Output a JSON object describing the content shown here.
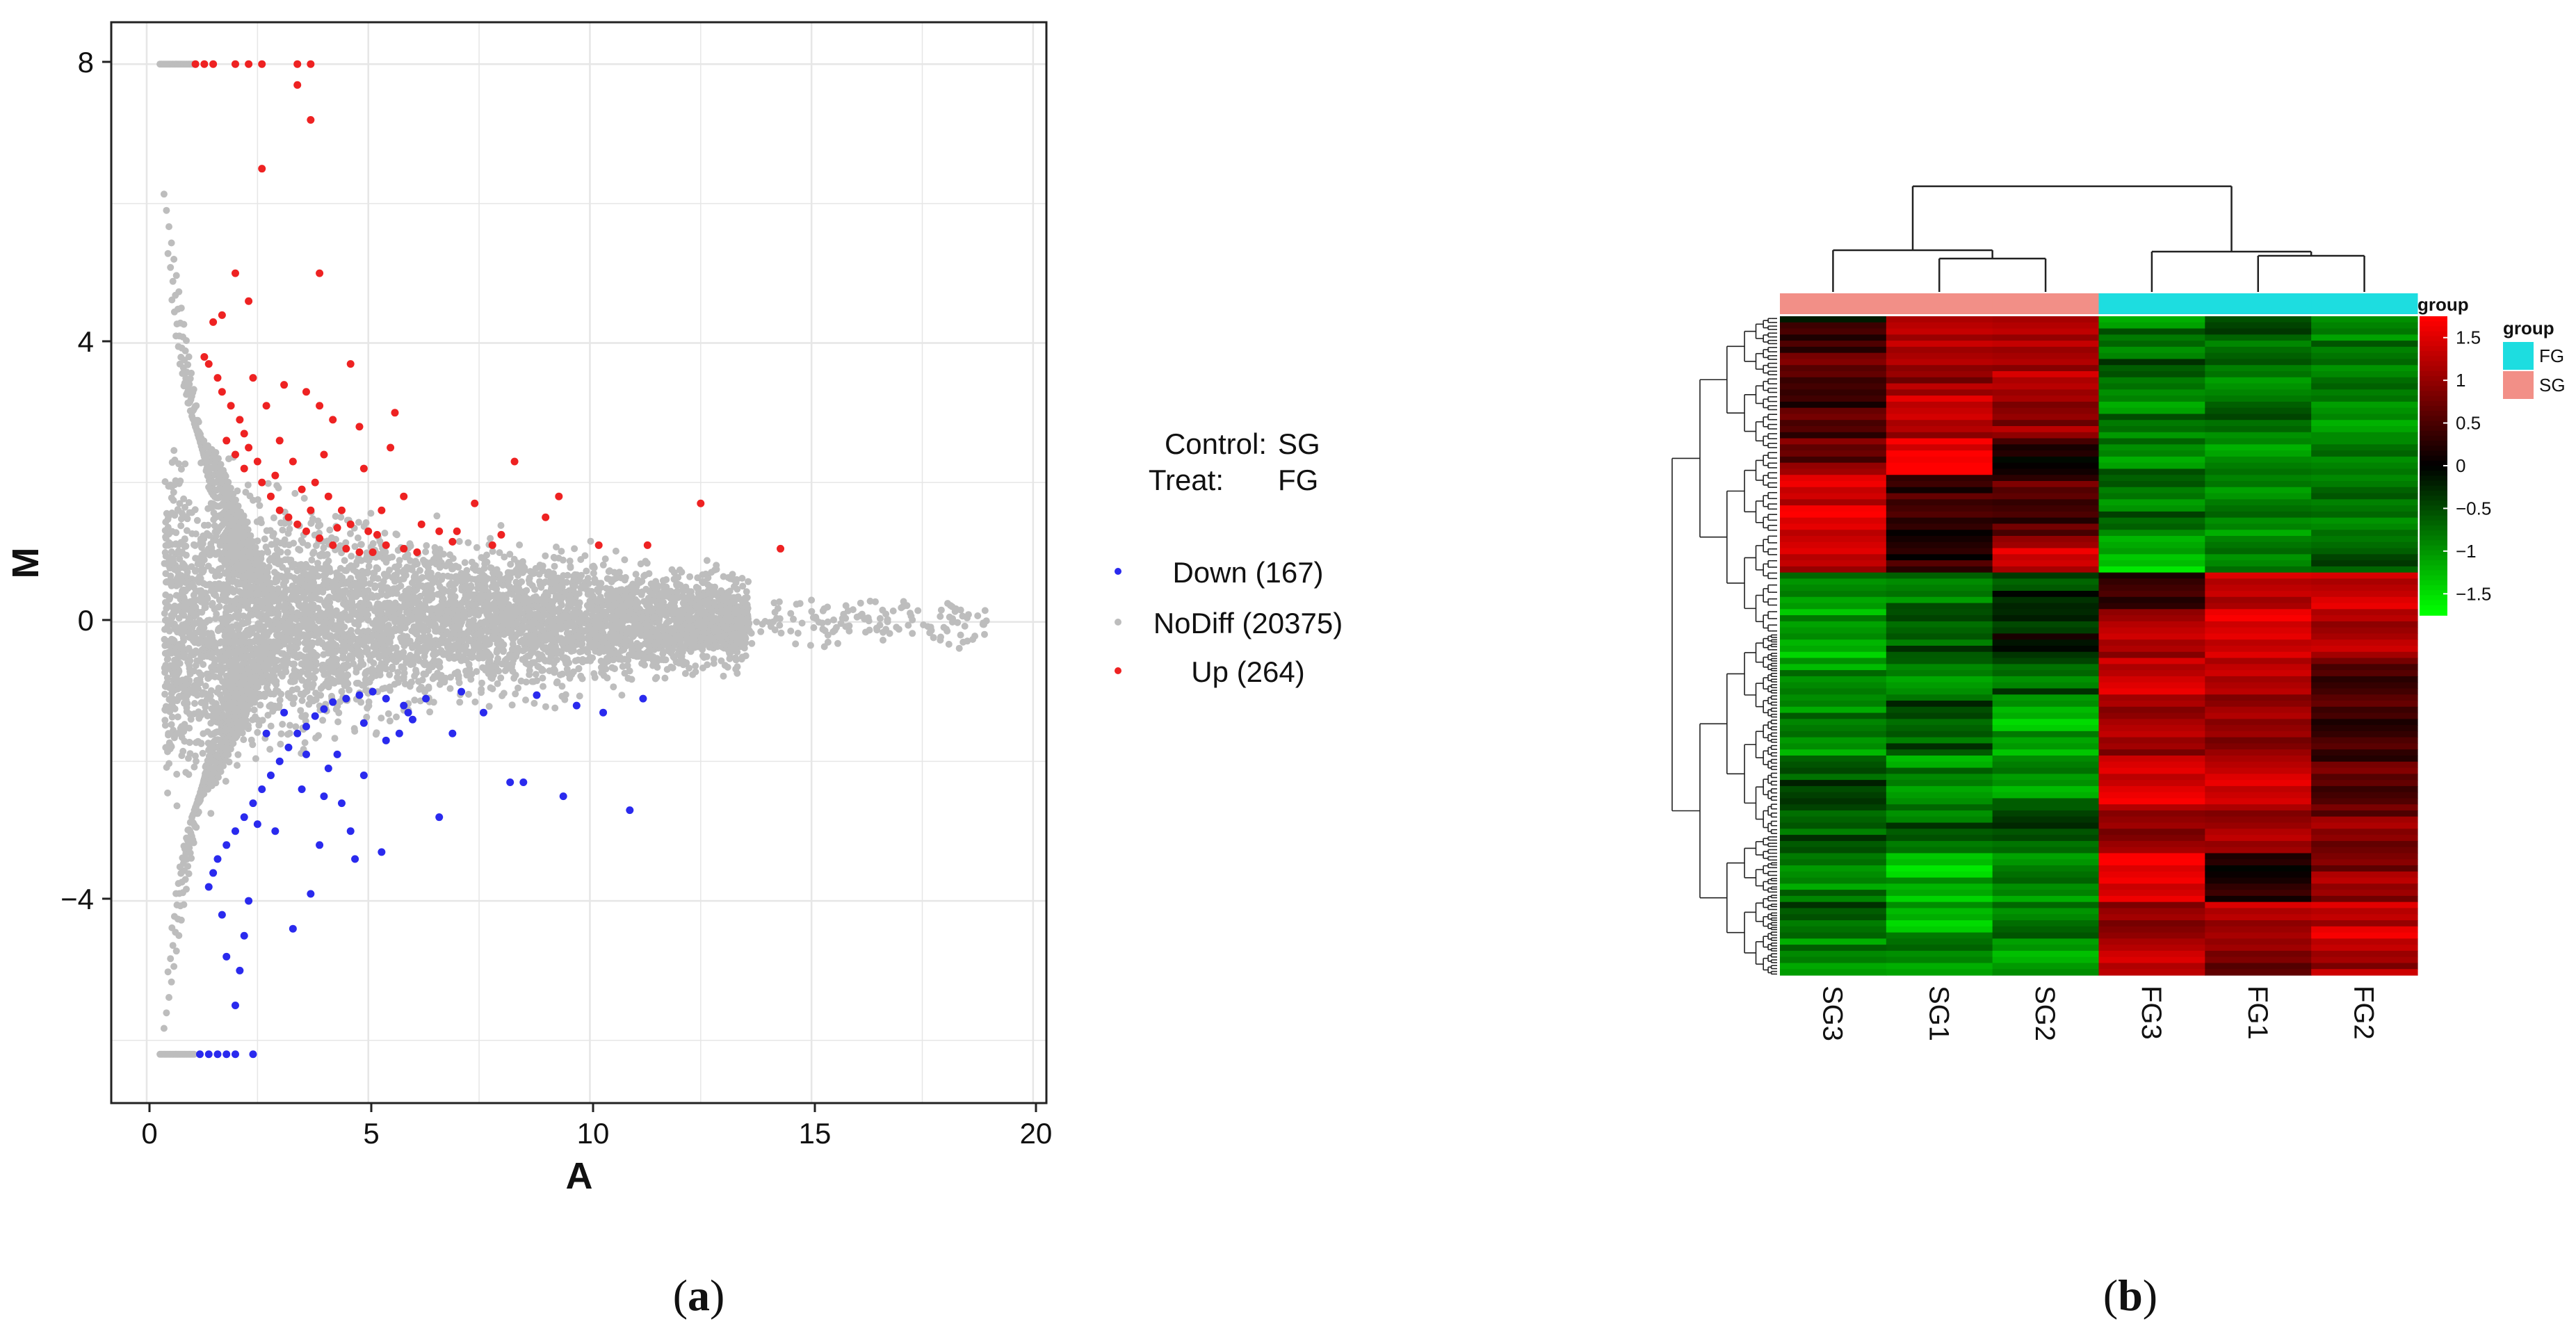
{
  "panels": {
    "a": "a",
    "b": "b"
  },
  "colors": {
    "up": "#ee2222",
    "down": "#2a2aee",
    "nodiff": "#bdbdbd",
    "grid": "#e6e6e6",
    "FG": "#1ddde0",
    "SG": "#f28f87"
  },
  "chart_data": [
    {
      "type": "scatter",
      "title": "",
      "xlabel": "A",
      "ylabel": "M",
      "xlim": [
        -0.8,
        20.3
      ],
      "ylim": [
        -6.9,
        8.6
      ],
      "xticks": [
        0,
        5,
        10,
        15,
        20
      ],
      "yticks": [
        -4,
        0,
        4,
        8
      ],
      "xtick_labels": [
        "0",
        "5",
        "10",
        "15",
        "20"
      ],
      "ytick_labels": [
        "−4",
        "0",
        "4",
        "8"
      ],
      "grid": true,
      "annotation": {
        "control_key": "Control:",
        "control_value": "SG",
        "treat_key": "Treat:",
        "treat_value": "FG"
      },
      "legend": [
        {
          "key": "down",
          "label": "Down (167)",
          "count": 167
        },
        {
          "key": "nodiff",
          "label": "NoDiff (20375)",
          "count": 20375
        },
        {
          "key": "up",
          "label": "Up (264)",
          "count": 264
        }
      ],
      "series": [
        {
          "name": "Up",
          "points": [
            [
              1.1,
              8
            ],
            [
              1.3,
              8
            ],
            [
              1.5,
              8
            ],
            [
              2.0,
              8
            ],
            [
              2.3,
              8
            ],
            [
              2.6,
              8
            ],
            [
              3.4,
              8
            ],
            [
              3.7,
              8
            ],
            [
              3.7,
              7.2
            ],
            [
              3.4,
              7.7
            ],
            [
              2.6,
              6.5
            ],
            [
              3.9,
              5
            ],
            [
              2.0,
              5.0
            ],
            [
              2.3,
              4.6
            ],
            [
              1.7,
              4.4
            ],
            [
              1.5,
              4.3
            ],
            [
              1.3,
              3.8
            ],
            [
              1.4,
              3.7
            ],
            [
              1.6,
              3.5
            ],
            [
              1.7,
              3.3
            ],
            [
              1.9,
              3.1
            ],
            [
              2.1,
              2.9
            ],
            [
              2.2,
              2.7
            ],
            [
              2.3,
              2.5
            ],
            [
              2.5,
              2.3
            ],
            [
              1.8,
              2.6
            ],
            [
              2.0,
              2.4
            ],
            [
              2.2,
              2.2
            ],
            [
              2.6,
              2.0
            ],
            [
              2.8,
              1.8
            ],
            [
              3.0,
              1.6
            ],
            [
              3.2,
              1.5
            ],
            [
              3.4,
              1.4
            ],
            [
              3.6,
              1.3
            ],
            [
              3.9,
              1.2
            ],
            [
              4.2,
              1.1
            ],
            [
              4.5,
              1.05
            ],
            [
              4.8,
              1.0
            ],
            [
              5.1,
              1.0
            ],
            [
              5.4,
              1.1
            ],
            [
              5.8,
              1.05
            ],
            [
              6.1,
              1.0
            ],
            [
              3.1,
              3.4
            ],
            [
              3.6,
              3.3
            ],
            [
              3.9,
              3.1
            ],
            [
              4.2,
              2.9
            ],
            [
              4.8,
              2.8
            ],
            [
              5.6,
              3.0
            ],
            [
              5.5,
              2.5
            ],
            [
              4.6,
              3.7
            ],
            [
              2.7,
              3.1
            ],
            [
              3.3,
              2.3
            ],
            [
              3.8,
              2.0
            ],
            [
              4.1,
              1.8
            ],
            [
              4.4,
              1.6
            ],
            [
              4.6,
              1.4
            ],
            [
              5.0,
              1.3
            ],
            [
              5.3,
              1.6
            ],
            [
              5.8,
              1.8
            ],
            [
              6.2,
              1.4
            ],
            [
              6.6,
              1.3
            ],
            [
              7.0,
              1.3
            ],
            [
              7.4,
              1.7
            ],
            [
              7.8,
              1.1
            ],
            [
              8.3,
              2.3
            ],
            [
              9.3,
              1.8
            ],
            [
              9.0,
              1.5
            ],
            [
              10.2,
              1.1
            ],
            [
              11.3,
              1.1
            ],
            [
              12.5,
              1.7
            ],
            [
              14.3,
              1.05
            ],
            [
              3.5,
              1.9
            ],
            [
              3.0,
              2.6
            ],
            [
              4.0,
              2.4
            ],
            [
              4.9,
              2.2
            ],
            [
              2.4,
              3.5
            ],
            [
              2.9,
              2.1
            ],
            [
              3.7,
              1.6
            ],
            [
              4.3,
              1.35
            ],
            [
              5.2,
              1.25
            ],
            [
              6.9,
              1.15
            ],
            [
              8.0,
              1.25
            ]
          ]
        },
        {
          "name": "Down",
          "points": [
            [
              1.2,
              -6.2
            ],
            [
              1.4,
              -6.2
            ],
            [
              1.6,
              -6.2
            ],
            [
              1.8,
              -6.2
            ],
            [
              2.0,
              -6.2
            ],
            [
              2.4,
              -6.2
            ],
            [
              2.0,
              -5.5
            ],
            [
              2.1,
              -5.0
            ],
            [
              1.8,
              -4.8
            ],
            [
              2.2,
              -4.5
            ],
            [
              1.7,
              -4.2
            ],
            [
              2.3,
              -4.0
            ],
            [
              1.4,
              -3.8
            ],
            [
              1.5,
              -3.6
            ],
            [
              1.6,
              -3.4
            ],
            [
              1.8,
              -3.2
            ],
            [
              2.0,
              -3.0
            ],
            [
              2.2,
              -2.8
            ],
            [
              2.4,
              -2.6
            ],
            [
              2.6,
              -2.4
            ],
            [
              2.8,
              -2.2
            ],
            [
              3.0,
              -2.0
            ],
            [
              3.2,
              -1.8
            ],
            [
              3.4,
              -1.6
            ],
            [
              3.6,
              -1.5
            ],
            [
              3.8,
              -1.35
            ],
            [
              4.0,
              -1.25
            ],
            [
              4.2,
              -1.15
            ],
            [
              4.5,
              -1.1
            ],
            [
              4.8,
              -1.05
            ],
            [
              5.1,
              -1.0
            ],
            [
              5.4,
              -1.1
            ],
            [
              5.8,
              -1.2
            ],
            [
              6.3,
              -1.1
            ],
            [
              3.3,
              -4.4
            ],
            [
              3.7,
              -3.9
            ],
            [
              3.9,
              -3.2
            ],
            [
              4.6,
              -3.0
            ],
            [
              4.7,
              -3.4
            ],
            [
              5.3,
              -3.3
            ],
            [
              4.4,
              -2.6
            ],
            [
              4.1,
              -2.1
            ],
            [
              4.9,
              -2.2
            ],
            [
              5.4,
              -1.7
            ],
            [
              6.0,
              -1.4
            ],
            [
              6.6,
              -2.8
            ],
            [
              7.1,
              -1.0
            ],
            [
              7.6,
              -1.3
            ],
            [
              8.2,
              -2.3
            ],
            [
              8.5,
              -2.3
            ],
            [
              9.4,
              -2.5
            ],
            [
              9.7,
              -1.2
            ],
            [
              10.3,
              -1.3
            ],
            [
              10.9,
              -2.7
            ],
            [
              11.2,
              -1.1
            ],
            [
              2.9,
              -3.0
            ],
            [
              3.5,
              -2.4
            ],
            [
              3.1,
              -1.3
            ],
            [
              2.7,
              -1.6
            ],
            [
              4.3,
              -1.9
            ],
            [
              5.7,
              -1.6
            ],
            [
              6.9,
              -1.6
            ],
            [
              2.5,
              -2.9
            ],
            [
              4.0,
              -2.5
            ],
            [
              3.6,
              -1.9
            ],
            [
              4.9,
              -1.45
            ],
            [
              5.9,
              -1.3
            ],
            [
              8.8,
              -1.05
            ]
          ]
        }
      ]
    },
    {
      "type": "heatmap",
      "title": "",
      "columns": [
        "SG3",
        "SG1",
        "SG2",
        "FG3",
        "FG1",
        "FG2"
      ],
      "column_groups": [
        "SG",
        "SG",
        "SG",
        "FG",
        "FG",
        "FG"
      ],
      "annotation_title": "group",
      "legend_title": "group",
      "legend_groups": [
        "FG",
        "SG"
      ],
      "colorbar_title": "group",
      "colorbar_range": [
        -1.75,
        1.75
      ],
      "colorbar_ticks": [
        1.5,
        1,
        0.5,
        0,
        -0.5,
        -1,
        -1.5
      ],
      "colorbar_tick_labels": [
        "1.5",
        "1",
        "0.5",
        "0",
        "−0.5",
        "−1",
        "−1.5"
      ],
      "blocks": [
        {
          "rows": 4,
          "values": [
            0.2,
            1.2,
            1.3,
            -0.9,
            -0.6,
            -0.9
          ]
        },
        {
          "rows": 8,
          "values": [
            0.6,
            1.1,
            1.2,
            -0.7,
            -0.8,
            -0.8
          ]
        },
        {
          "rows": 8,
          "values": [
            0.5,
            1.3,
            1.0,
            -0.9,
            -0.7,
            -1.0
          ]
        },
        {
          "rows": 6,
          "values": [
            0.8,
            1.7,
            0.1,
            -0.9,
            -1.0,
            -0.9
          ]
        },
        {
          "rows": 10,
          "values": [
            1.5,
            0.4,
            0.5,
            -0.8,
            -0.9,
            -0.8
          ]
        },
        {
          "rows": 6,
          "values": [
            1.4,
            0.3,
            1.3,
            -1.3,
            -0.8,
            -0.6
          ]
        },
        {
          "rows": 6,
          "values": [
            -1.0,
            -0.8,
            -0.4,
            0.3,
            1.3,
            1.4
          ]
        },
        {
          "rows": 8,
          "values": [
            -1.1,
            -0.6,
            -0.2,
            1.2,
            1.5,
            1.2
          ]
        },
        {
          "rows": 6,
          "values": [
            -1.0,
            -1.0,
            -0.7,
            1.4,
            1.2,
            0.5
          ]
        },
        {
          "rows": 10,
          "values": [
            -0.9,
            -0.6,
            -1.2,
            1.1,
            1.0,
            0.4
          ]
        },
        {
          "rows": 8,
          "values": [
            -0.5,
            -1.0,
            -1.0,
            1.5,
            1.4,
            0.6
          ]
        },
        {
          "rows": 8,
          "values": [
            -0.6,
            -0.7,
            -0.5,
            1.0,
            1.1,
            0.9
          ]
        },
        {
          "rows": 8,
          "values": [
            -0.9,
            -1.3,
            -0.9,
            1.6,
            0.2,
            1.0
          ]
        },
        {
          "rows": 6,
          "values": [
            -0.7,
            -1.2,
            -0.8,
            0.9,
            1.2,
            1.4
          ]
        },
        {
          "rows": 6,
          "values": [
            -1.0,
            -0.9,
            -1.1,
            1.3,
            0.8,
            1.2
          ]
        }
      ]
    }
  ]
}
